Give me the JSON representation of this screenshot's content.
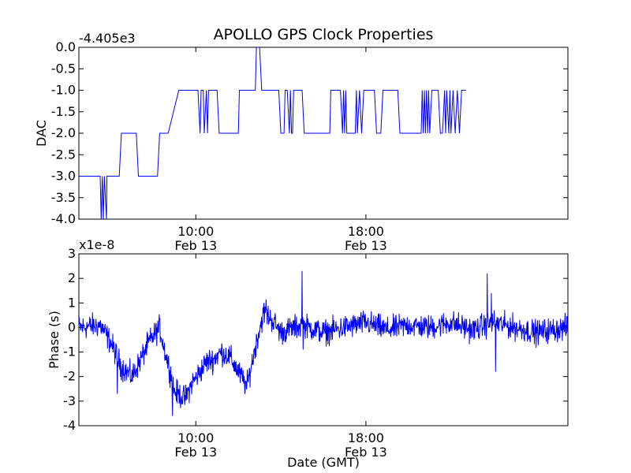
{
  "chart_data": [
    {
      "type": "line",
      "title": "APOLLO GPS Clock Properties",
      "ylabel": "DAC",
      "xlabel": "",
      "y_offset_label": "-4.405e3",
      "ylim": [
        -4.0,
        0.0
      ],
      "xlim_hours": [
        4.5,
        27.5
      ],
      "y_ticks": [
        "0.0",
        "-0.5",
        "-1.0",
        "-1.5",
        "-2.0",
        "-2.5",
        "-3.0",
        "-3.5",
        "-4.0"
      ],
      "x_ticks": [
        {
          "time": "10:00",
          "date": "Feb 13"
        },
        {
          "time": "18:00",
          "date": "Feb 13"
        }
      ],
      "grid": false,
      "legend": "none",
      "color": "#0000ff",
      "series": [
        {
          "x": [
            4.5,
            5.5,
            5.55,
            5.6,
            5.65,
            5.7,
            5.75,
            5.8,
            5.82,
            5.85,
            6.4,
            6.5,
            7.2,
            7.3,
            8.2,
            8.3,
            8.5,
            8.7,
            9.2,
            9.3,
            10.1,
            10.2,
            10.25,
            10.35,
            10.4,
            10.5,
            10.55,
            10.6,
            10.7,
            11.0,
            11.1,
            12.0,
            12.05,
            12.4,
            12.5,
            12.8,
            12.85,
            13.0,
            13.1,
            13.5,
            13.6,
            13.9,
            14.0,
            14.15,
            14.2,
            14.3,
            14.4,
            14.45,
            14.5,
            14.55,
            14.6,
            15.0,
            15.1,
            16.3,
            16.35,
            16.8,
            16.9,
            16.95,
            17.0,
            17.05,
            17.1,
            17.5,
            17.55,
            17.6,
            17.7,
            17.8,
            17.9,
            18.4,
            18.5,
            18.7,
            18.8,
            19.5,
            19.6,
            20.6,
            20.65,
            20.7,
            20.75,
            20.8,
            20.85,
            20.9,
            20.95,
            21.0,
            21.1,
            21.4,
            21.5,
            21.6,
            21.7,
            21.75,
            21.8,
            21.9,
            21.95,
            22.0,
            22.1,
            22.2,
            22.3,
            22.4,
            22.5,
            22.7
          ],
          "y": [
            -3.0,
            -3.0,
            -4.0,
            -3.0,
            -4.0,
            -3.0,
            -3.5,
            -4.0,
            -3.0,
            -3.0,
            -3.0,
            -2.0,
            -2.0,
            -3.0,
            -3.0,
            -2.0,
            -2.0,
            -2.0,
            -1.0,
            -1.0,
            -1.0,
            -2.0,
            -1.0,
            -1.0,
            -2.0,
            -1.0,
            -2.0,
            -1.0,
            -1.0,
            -1.0,
            -2.0,
            -2.0,
            -1.0,
            -1.0,
            -1.0,
            -1.0,
            0.0,
            0.0,
            -1.0,
            -1.0,
            -1.0,
            -1.0,
            -2.0,
            -2.0,
            -1.0,
            -1.0,
            -2.0,
            -1.0,
            -2.0,
            -2.0,
            -1.0,
            -1.0,
            -2.0,
            -2.0,
            -1.0,
            -1.0,
            -2.0,
            -1.0,
            -2.0,
            -1.0,
            -2.0,
            -2.0,
            -1.0,
            -2.0,
            -1.0,
            -2.0,
            -1.0,
            -1.0,
            -2.0,
            -2.0,
            -1.0,
            -1.0,
            -2.0,
            -2.0,
            -1.0,
            -2.0,
            -1.0,
            -2.0,
            -1.0,
            -2.0,
            -1.0,
            -2.0,
            -1.0,
            -1.0,
            -2.0,
            -2.0,
            -1.0,
            -2.0,
            -1.0,
            -2.0,
            -1.0,
            -2.0,
            -1.0,
            -2.0,
            -1.0,
            -2.0,
            -1.0,
            -1.0
          ]
        }
      ]
    },
    {
      "type": "line",
      "title": "",
      "ylabel": "Phase (s)",
      "xlabel": "Date (GMT)",
      "y_offset_label": "x1e-8",
      "ylim": [
        -4,
        3
      ],
      "xlim_hours": [
        4.5,
        27.5
      ],
      "y_ticks": [
        "3",
        "2",
        "1",
        "0",
        "-1",
        "-2",
        "-3",
        "-4"
      ],
      "x_ticks": [
        {
          "time": "10:00",
          "date": "Feb 13"
        },
        {
          "time": "18:00",
          "date": "Feb 13"
        }
      ],
      "grid": false,
      "legend": "none",
      "color": "#0000ff",
      "series": [
        {
          "x_start_hours": 4.5,
          "x_end_hours": 27.5,
          "trend_hours": [
            4.5,
            5.5,
            6.0,
            6.5,
            7.0,
            7.3,
            7.8,
            8.3,
            8.5,
            8.8,
            9.0,
            9.5,
            9.8,
            10.2,
            10.5,
            10.8,
            11.2,
            11.6,
            12.0,
            12.4,
            12.6,
            12.9,
            13.2,
            13.6,
            14.0,
            15.0,
            16.0,
            17.0,
            18.0,
            19.0,
            20.0,
            21.0,
            22.0,
            23.0,
            24.0,
            25.0,
            26.0,
            27.5
          ],
          "trend_values": [
            0.0,
            0.1,
            -0.6,
            -1.6,
            -2.0,
            -1.5,
            -0.6,
            0.0,
            -0.8,
            -1.8,
            -2.6,
            -2.9,
            -2.3,
            -1.8,
            -1.4,
            -1.3,
            -1.0,
            -1.2,
            -1.8,
            -2.4,
            -1.6,
            -0.4,
            0.6,
            0.3,
            -0.2,
            0.1,
            -0.2,
            0.0,
            0.2,
            -0.1,
            0.1,
            0.0,
            0.2,
            -0.1,
            0.2,
            0.0,
            -0.2,
            0.0
          ],
          "noise_amplitude": 0.45,
          "spikes": [
            {
              "x_hours": 15.0,
              "y": 2.3
            },
            {
              "x_hours": 15.05,
              "y": -0.9
            },
            {
              "x_hours": 23.7,
              "y": 2.2
            },
            {
              "x_hours": 23.9,
              "y": 1.4
            },
            {
              "x_hours": 24.1,
              "y": -1.8
            },
            {
              "x_hours": 13.3,
              "y": 1.15
            },
            {
              "x_hours": 8.9,
              "y": -3.6
            },
            {
              "x_hours": 6.3,
              "y": -2.7
            }
          ]
        }
      ]
    }
  ]
}
